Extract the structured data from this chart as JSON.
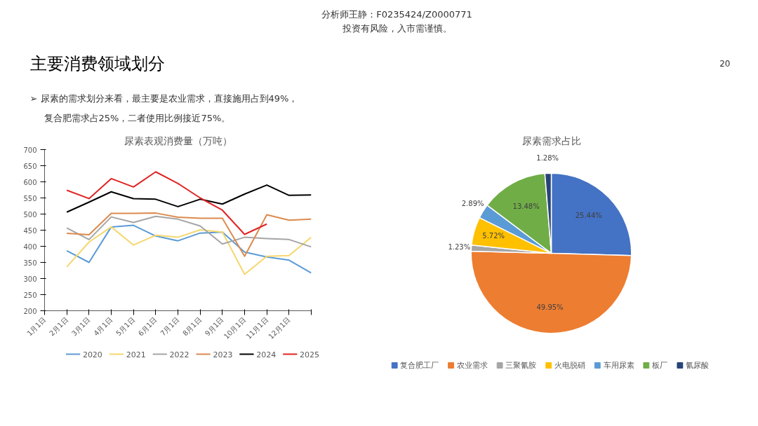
{
  "chart_data": [
    {
      "type": "other",
      "title": "主要消费领域划分",
      "annotations": [
        "分析师王静：F0235424/Z0000771",
        "投资有风险，入市需谨慎。",
        "➢  尿素的需求划分来看，最主要是农业需求，直接施用占到49%，",
        "20",
        "复合肥需求占25%，二者使用比例接近75%。"
      ]
    },
    {
      "type": "line",
      "title": "尿素表观消费量（万吨）",
      "categories": [
        "1月1日",
        "2月1日",
        "3月1日",
        "4月1日",
        "5月1日",
        "6月1日",
        "7月1日",
        "8月1日",
        "9月1日",
        "10月1日",
        "11月1日",
        "12月1日",
        null
      ],
      "ylim": [
        200,
        700
      ],
      "yticks": [
        200,
        250,
        300,
        350,
        400,
        450,
        500,
        550,
        600,
        650,
        700
      ],
      "grid": false,
      "legend": "bottom",
      "marker": "none",
      "line_style": "solid",
      "series": [
        {
          "name": "2020",
          "color": "#5b9bd5",
          "values": [
            null,
            386,
            350,
            460,
            465,
            432,
            417,
            441,
            444,
            382,
            367,
            357,
            317
          ]
        },
        {
          "name": "2021",
          "color": "#f5d76e",
          "values": [
            null,
            336,
            413,
            460,
            404,
            434,
            428,
            451,
            444,
            313,
            369,
            371,
            428
          ]
        },
        {
          "name": "2022",
          "color": "#a5a5a5",
          "values": [
            null,
            457,
            421,
            491,
            474,
            493,
            484,
            463,
            407,
            428,
            424,
            421,
            398
          ]
        },
        {
          "name": "2023",
          "color": "#dc8a4e",
          "values": [
            null,
            440,
            436,
            502,
            502,
            503,
            490,
            487,
            487,
            369,
            498,
            481,
            484
          ]
        },
        {
          "name": "2024",
          "color": "#000000",
          "values": [
            null,
            506,
            537,
            569,
            548,
            546,
            523,
            546,
            531,
            562,
            590,
            558,
            559
          ]
        },
        {
          "name": "2025",
          "color": "#e02424",
          "values": [
            null,
            574,
            548,
            610,
            584,
            631,
            595,
            550,
            512,
            437,
            469,
            null,
            null
          ]
        }
      ]
    },
    {
      "type": "pie",
      "title": "尿素需求占比",
      "categories": [
        "复合肥工厂",
        "农业需求",
        "三聚氰胺",
        "火电脱硝",
        "车用尿素",
        "板厂",
        "氰尿酸"
      ],
      "values": [
        25.44,
        49.95,
        1.23,
        5.72,
        2.89,
        13.48,
        1.28
      ],
      "colors": [
        "#4472c4",
        "#ed7d31",
        "#a5a5a5",
        "#ffc000",
        "#5b9bd5",
        "#70ad47",
        "#264478"
      ],
      "value_labels": [
        "25.44%",
        "49.95%",
        "1.23%",
        "5.72%",
        "2.89%",
        "13.48%",
        "1.28%"
      ],
      "legend": "bottom"
    }
  ]
}
